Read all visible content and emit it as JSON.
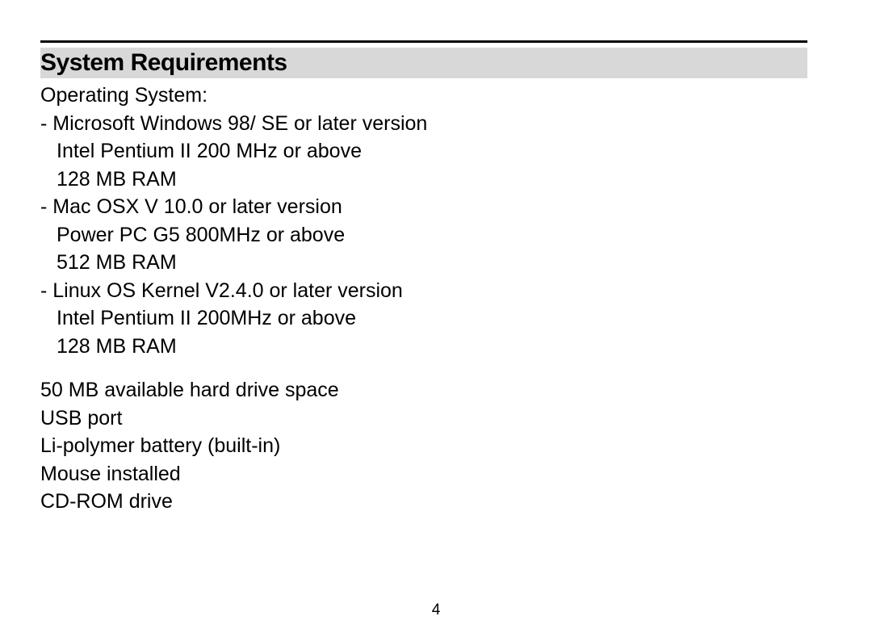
{
  "heading": "System Requirements",
  "os_label": "Operating System:",
  "os_items": [
    {
      "title": "- Microsoft Windows 98/ SE or later version",
      "sub1": "Intel Pentium II 200 MHz or above",
      "sub2": "128 MB RAM"
    },
    {
      "title": "- Mac OSX V 10.0 or later version",
      "sub1": "Power PC G5 800MHz or above",
      "sub2": "512 MB RAM"
    },
    {
      "title": "- Linux OS Kernel V2.4.0 or later version",
      "sub1": "Intel Pentium II 200MHz or above",
      "sub2": "128 MB RAM"
    }
  ],
  "additional": [
    "50 MB available hard drive space",
    "USB port",
    "Li-polymer battery (built-in)",
    "Mouse installed",
    "CD-ROM drive"
  ],
  "page_number": "4",
  "colors": {
    "heading_bg": "#d8d8d8",
    "text": "#000000",
    "rule": "#000000",
    "background": "#ffffff"
  }
}
